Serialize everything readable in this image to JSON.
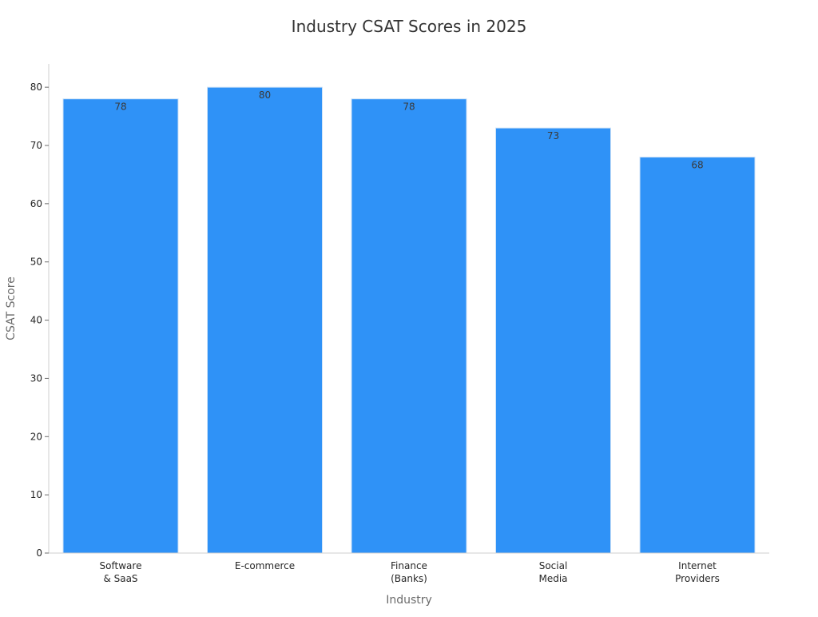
{
  "chart_data": {
    "type": "bar",
    "title": "Industry CSAT Scores in 2025",
    "xlabel": "Industry",
    "ylabel": "CSAT Score",
    "categories": [
      [
        "Software",
        "& SaaS"
      ],
      [
        "E-commerce"
      ],
      [
        "Finance",
        "(Banks)"
      ],
      [
        "Social",
        "Media"
      ],
      [
        "Internet",
        "Providers"
      ]
    ],
    "values": [
      78,
      80,
      78,
      73,
      68
    ],
    "data_labels": [
      "78",
      "80",
      "78",
      "73",
      "68"
    ],
    "ylim": [
      0,
      84
    ],
    "yticks": [
      0,
      10,
      20,
      30,
      40,
      50,
      60,
      70,
      80
    ],
    "grid": false,
    "legend": "none",
    "bar_color": "#2f92f7",
    "bar_edge_color": "#cfe3f7"
  }
}
